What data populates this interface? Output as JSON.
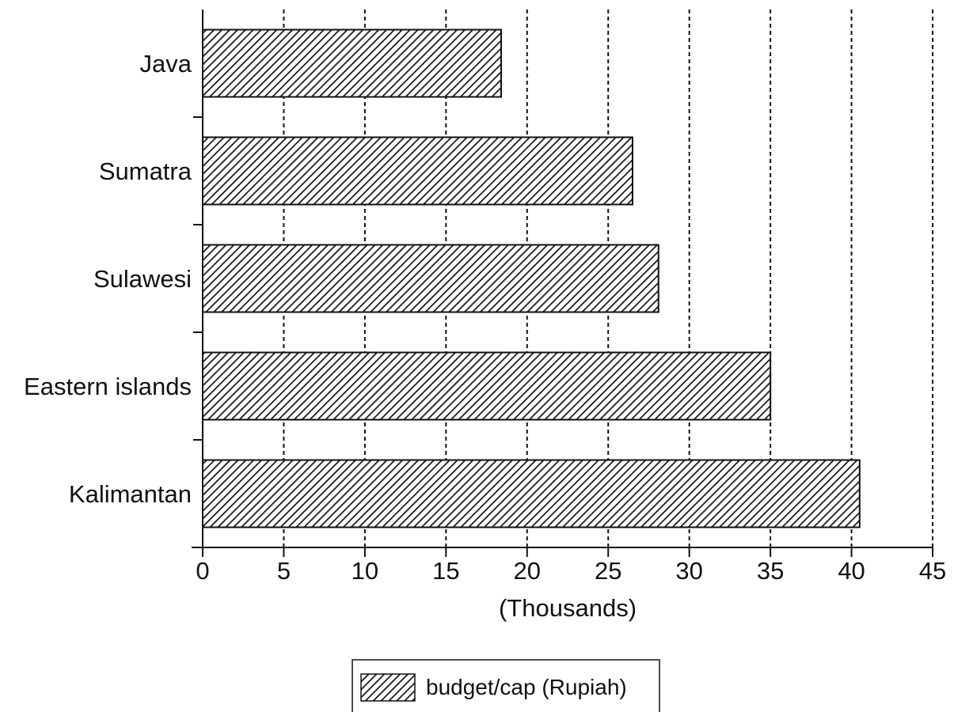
{
  "chart_data": {
    "type": "bar",
    "orientation": "horizontal",
    "categories": [
      "Java",
      "Sumatra",
      "Sulawesi",
      "Eastern islands",
      "Kalimantan"
    ],
    "series": [
      {
        "name": "budget/cap (Rupiah)",
        "values": [
          18.4,
          26.5,
          28.1,
          35.0,
          40.5
        ]
      }
    ],
    "xlabel": "(Thousands)",
    "ylabel": "",
    "xlim": [
      0,
      45
    ],
    "x_ticks": [
      0,
      5,
      10,
      15,
      20,
      25,
      30,
      35,
      40,
      45
    ],
    "grid": "vertical dashed",
    "legend": "bottom-center",
    "bar_fill": "diagonal-hatch",
    "colors": {
      "bar_stroke": "#111111",
      "hatch": "#111111",
      "background": "#ffffff",
      "grid": "#111111"
    }
  }
}
